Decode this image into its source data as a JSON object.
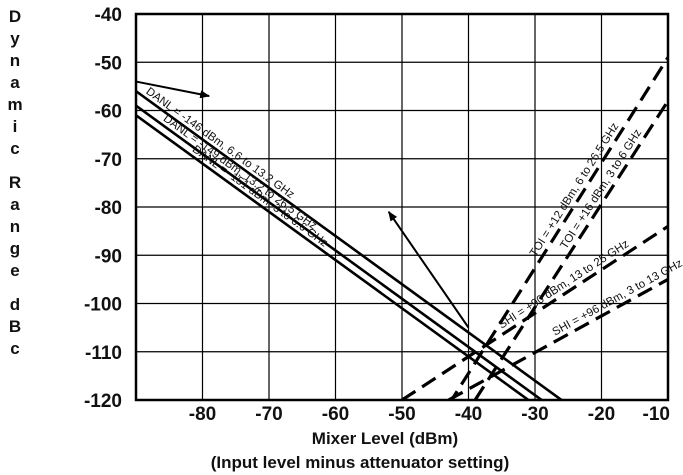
{
  "chart_data": {
    "type": "line",
    "xlabel": "Mixer Level (dBm)",
    "xlabel_sub": "(Input level minus attenuator setting)",
    "ylabel": "Dynamic Range dBc",
    "ylabel_words": [
      "Dynamic",
      "Range",
      "dBc"
    ],
    "xlim": [
      -90,
      -10
    ],
    "ylim": [
      -120,
      -40
    ],
    "x_ticks": [
      -80,
      -70,
      -60,
      -50,
      -40,
      -30,
      -20,
      -10
    ],
    "x_tick_labels": [
      "-80",
      "-70",
      "-60",
      "-50",
      "-40",
      "-30",
      "-20",
      "-10"
    ],
    "y_ticks": [
      -40,
      -50,
      -60,
      -70,
      -80,
      -90,
      -100,
      -110,
      -120
    ],
    "y_tick_labels": [
      "-40",
      "-50",
      "-60",
      "-70",
      "-80",
      "-90",
      "-100",
      "-110",
      "-120"
    ],
    "grid": true,
    "series": [
      {
        "name": "DANL = -146 dBm, 6.6 to 13.2 GHz",
        "style": "solid",
        "x": [
          -90,
          -23
        ],
        "y": [
          -56,
          -123
        ]
      },
      {
        "name": "DANL = -149 dBm, 13.2 to 26.5 GHz",
        "style": "solid",
        "x": [
          -90,
          -26
        ],
        "y": [
          -59,
          -123
        ]
      },
      {
        "name": "DANL = -151 dBm, 3 to 6.6 GHz",
        "style": "solid",
        "x": [
          -90,
          -30
        ],
        "y": [
          -61,
          -121
        ]
      },
      {
        "name": "TOI = +12 dBm, 6 to 26.5 GHz",
        "style": "dashed",
        "x": [
          -43,
          -10
        ],
        "y": [
          -121,
          -49
        ]
      },
      {
        "name": "TOI = +16 dBm, 3 to 6 GHz",
        "style": "dashed",
        "x": [
          -39,
          -10
        ],
        "y": [
          -120,
          -58
        ]
      },
      {
        "name": "SHI = +90 dBm, 13 to 25 GHz",
        "style": "dashed",
        "x": [
          -50,
          -10
        ],
        "y": [
          -120,
          -84
        ]
      },
      {
        "name": "SHI = +96 dBm, 3 to 13 GHz",
        "style": "dashed",
        "x": [
          -43,
          -10
        ],
        "y": [
          -120,
          -95
        ]
      }
    ],
    "annotations": [
      {
        "type": "arrow",
        "from": [
          -90,
          -54
        ],
        "to": [
          -79,
          -57
        ]
      },
      {
        "type": "arrow",
        "from": [
          -40,
          -105
        ],
        "to": [
          -52,
          -81
        ]
      }
    ]
  }
}
